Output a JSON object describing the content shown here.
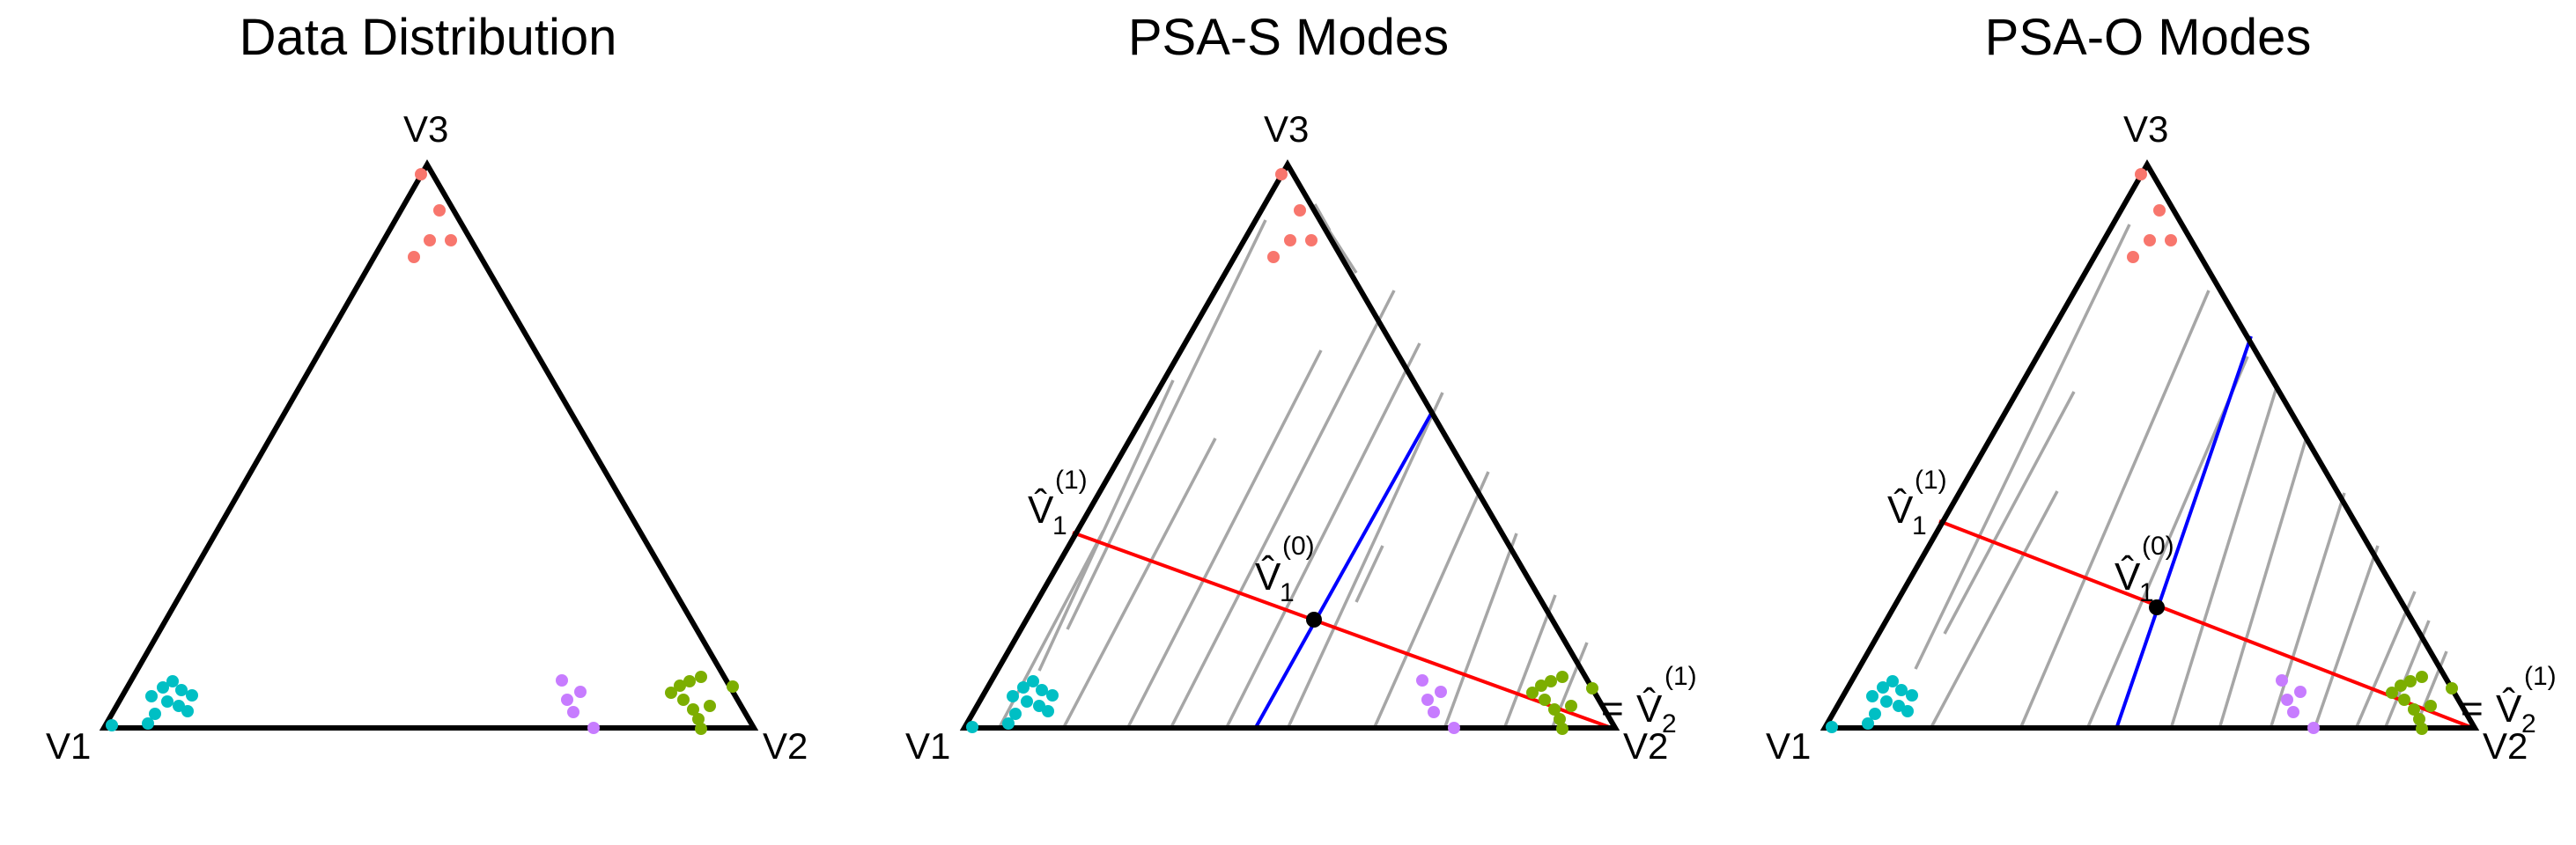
{
  "panels": [
    {
      "title": "Data Distribution",
      "vertices": {
        "v1": "V1",
        "v2": "V2",
        "v3": "V3"
      },
      "show_grid": false,
      "show_modes": false
    },
    {
      "title": "PSA-S Modes",
      "vertices": {
        "v1": "V1",
        "v2": "V2",
        "v3": "V3"
      },
      "show_grid": true,
      "show_modes": true,
      "annotations": {
        "v1_hat_1": {
          "base": "V̂",
          "sub": "1",
          "sup": "(1)"
        },
        "v1_hat_0": {
          "base": "V̂",
          "sub": "1",
          "sup": "(0)"
        },
        "v2_hat_1": {
          "prefix": "= ",
          "base": "V̂",
          "sub": "2",
          "sup": "(1)"
        }
      }
    },
    {
      "title": "PSA-O Modes",
      "vertices": {
        "v1": "V1",
        "v2": "V2",
        "v3": "V3"
      },
      "show_grid": true,
      "show_modes": true,
      "annotations": {
        "v1_hat_1": {
          "base": "V̂",
          "sub": "1",
          "sup": "(1)"
        },
        "v1_hat_0": {
          "base": "V̂",
          "sub": "1",
          "sup": "(0)"
        },
        "v2_hat_1": {
          "prefix": "= ",
          "base": "V̂",
          "sub": "2",
          "sup": "(1)"
        }
      }
    }
  ],
  "clusters": [
    {
      "name": "red",
      "color": "#f8766d"
    },
    {
      "name": "cyan",
      "color": "#00bfc4"
    },
    {
      "name": "purple",
      "color": "#c77cff"
    },
    {
      "name": "green",
      "color": "#7cae00"
    }
  ],
  "colors": {
    "triangle": "#000000",
    "grid": "#a6a6a6",
    "principal_line": "#ff0000",
    "second_line": "#0000ff",
    "center_point": "#000000"
  }
}
